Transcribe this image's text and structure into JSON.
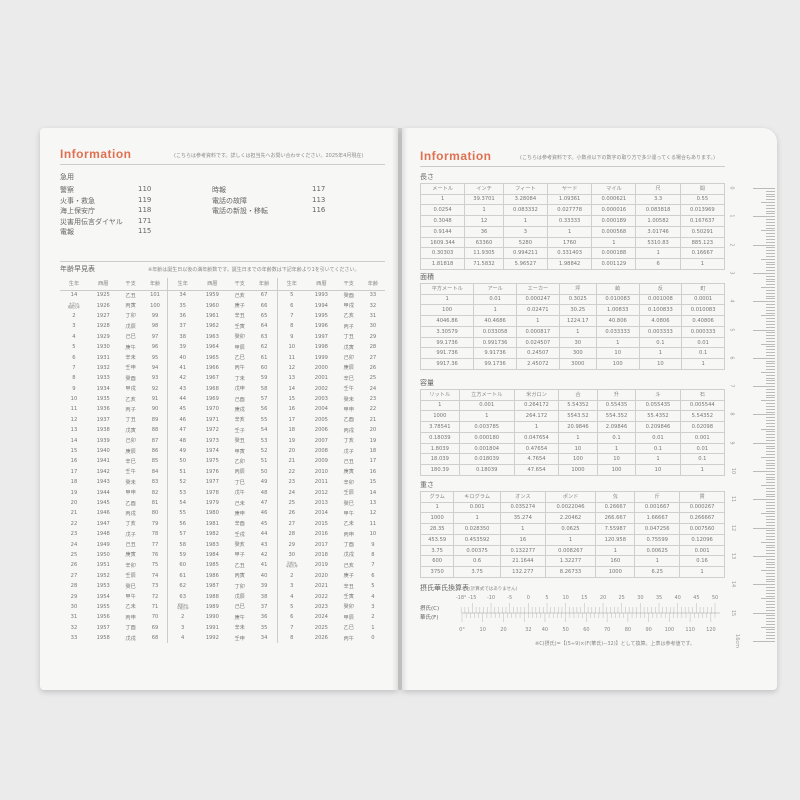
{
  "left": {
    "title": "Information",
    "note": "(こちらは参考資料です。詳しくは担当先へお問い合わせください。2025年4月現在)",
    "emergency": {
      "heading": "急用",
      "col1": [
        {
          "label": "警察",
          "num": "110"
        },
        {
          "label": "火事・救急",
          "num": "119"
        },
        {
          "label": "海上保安庁",
          "num": "118"
        },
        {
          "label": "災害用伝言ダイヤル",
          "num": "171"
        },
        {
          "label": "電報",
          "num": "115"
        }
      ],
      "col2": [
        {
          "label": "時報",
          "num": "117"
        },
        {
          "label": "電話の故障",
          "num": "113"
        },
        {
          "label": "電話の新設・移転",
          "num": "116"
        }
      ]
    },
    "age_table": {
      "heading": "年齢早見表",
      "note": "※年齢は誕生日以後の満年齢数です。誕生日までの年齢数は下記年齢より1を引いてください。",
      "headers": [
        "生年",
        "西暦",
        "干支",
        "年齢"
      ],
      "columns": [
        [
          [
            "14",
            "1925",
            "乙丑",
            "101"
          ],
          [
            "大正15 昭和元年",
            "1926",
            "丙寅",
            "100"
          ],
          [
            "2",
            "1927",
            "丁卯",
            "99"
          ],
          [
            "3",
            "1928",
            "戊辰",
            "98"
          ],
          [
            "4",
            "1929",
            "己巳",
            "97"
          ],
          [
            "5",
            "1930",
            "庚午",
            "96"
          ],
          [
            "6",
            "1931",
            "辛未",
            "95"
          ],
          [
            "7",
            "1932",
            "壬申",
            "94"
          ],
          [
            "8",
            "1933",
            "癸酉",
            "93"
          ],
          [
            "9",
            "1934",
            "甲戌",
            "92"
          ],
          [
            "10",
            "1935",
            "乙亥",
            "91"
          ],
          [
            "11",
            "1936",
            "丙子",
            "90"
          ],
          [
            "12",
            "1937",
            "丁丑",
            "89"
          ],
          [
            "13",
            "1938",
            "戊寅",
            "88"
          ],
          [
            "14",
            "1939",
            "己卯",
            "87"
          ],
          [
            "15",
            "1940",
            "庚辰",
            "86"
          ],
          [
            "16",
            "1941",
            "辛巳",
            "85"
          ],
          [
            "17",
            "1942",
            "壬午",
            "84"
          ],
          [
            "18",
            "1943",
            "癸未",
            "83"
          ],
          [
            "19",
            "1944",
            "甲申",
            "82"
          ],
          [
            "20",
            "1945",
            "乙酉",
            "81"
          ],
          [
            "21",
            "1946",
            "丙戌",
            "80"
          ],
          [
            "22",
            "1947",
            "丁亥",
            "79"
          ],
          [
            "23",
            "1948",
            "戊子",
            "78"
          ],
          [
            "24",
            "1949",
            "己丑",
            "77"
          ],
          [
            "25",
            "1950",
            "庚寅",
            "76"
          ],
          [
            "26",
            "1951",
            "辛卯",
            "75"
          ],
          [
            "27",
            "1952",
            "壬辰",
            "74"
          ],
          [
            "28",
            "1953",
            "癸巳",
            "73"
          ],
          [
            "29",
            "1954",
            "甲午",
            "72"
          ],
          [
            "30",
            "1955",
            "乙未",
            "71"
          ],
          [
            "31",
            "1956",
            "丙申",
            "70"
          ],
          [
            "32",
            "1957",
            "丁酉",
            "69"
          ],
          [
            "33",
            "1958",
            "戊戌",
            "68"
          ]
        ],
        [
          [
            "34",
            "1959",
            "己亥",
            "67"
          ],
          [
            "35",
            "1960",
            "庚子",
            "66"
          ],
          [
            "36",
            "1961",
            "辛丑",
            "65"
          ],
          [
            "37",
            "1962",
            "壬寅",
            "64"
          ],
          [
            "38",
            "1963",
            "癸卯",
            "63"
          ],
          [
            "39",
            "1964",
            "甲辰",
            "62"
          ],
          [
            "40",
            "1965",
            "乙巳",
            "61"
          ],
          [
            "41",
            "1966",
            "丙午",
            "60"
          ],
          [
            "42",
            "1967",
            "丁未",
            "59"
          ],
          [
            "43",
            "1968",
            "戊申",
            "58"
          ],
          [
            "44",
            "1969",
            "己酉",
            "57"
          ],
          [
            "45",
            "1970",
            "庚戌",
            "56"
          ],
          [
            "46",
            "1971",
            "辛亥",
            "55"
          ],
          [
            "47",
            "1972",
            "壬子",
            "54"
          ],
          [
            "48",
            "1973",
            "癸丑",
            "53"
          ],
          [
            "49",
            "1974",
            "甲寅",
            "52"
          ],
          [
            "50",
            "1975",
            "乙卯",
            "51"
          ],
          [
            "51",
            "1976",
            "丙辰",
            "50"
          ],
          [
            "52",
            "1977",
            "丁巳",
            "49"
          ],
          [
            "53",
            "1978",
            "戊午",
            "48"
          ],
          [
            "54",
            "1979",
            "己未",
            "47"
          ],
          [
            "55",
            "1980",
            "庚申",
            "46"
          ],
          [
            "56",
            "1981",
            "辛酉",
            "45"
          ],
          [
            "57",
            "1982",
            "壬戌",
            "44"
          ],
          [
            "58",
            "1983",
            "癸亥",
            "43"
          ],
          [
            "59",
            "1984",
            "甲子",
            "42"
          ],
          [
            "60",
            "1985",
            "乙丑",
            "41"
          ],
          [
            "61",
            "1986",
            "丙寅",
            "40"
          ],
          [
            "62",
            "1987",
            "丁卯",
            "39"
          ],
          [
            "63",
            "1988",
            "戊辰",
            "38"
          ],
          [
            "昭和64 平成元年",
            "1989",
            "己巳",
            "37"
          ],
          [
            "2",
            "1990",
            "庚午",
            "36"
          ],
          [
            "3",
            "1991",
            "辛未",
            "35"
          ],
          [
            "4",
            "1992",
            "壬申",
            "34"
          ]
        ],
        [
          [
            "5",
            "1993",
            "癸酉",
            "33"
          ],
          [
            "6",
            "1994",
            "甲戌",
            "32"
          ],
          [
            "7",
            "1995",
            "乙亥",
            "31"
          ],
          [
            "8",
            "1996",
            "丙子",
            "30"
          ],
          [
            "9",
            "1997",
            "丁丑",
            "29"
          ],
          [
            "10",
            "1998",
            "戊寅",
            "28"
          ],
          [
            "11",
            "1999",
            "己卯",
            "27"
          ],
          [
            "12",
            "2000",
            "庚辰",
            "26"
          ],
          [
            "13",
            "2001",
            "辛巳",
            "25"
          ],
          [
            "14",
            "2002",
            "壬午",
            "24"
          ],
          [
            "15",
            "2003",
            "癸未",
            "23"
          ],
          [
            "16",
            "2004",
            "甲申",
            "22"
          ],
          [
            "17",
            "2005",
            "乙酉",
            "21"
          ],
          [
            "18",
            "2006",
            "丙戌",
            "20"
          ],
          [
            "19",
            "2007",
            "丁亥",
            "19"
          ],
          [
            "20",
            "2008",
            "戊子",
            "18"
          ],
          [
            "21",
            "2009",
            "己丑",
            "17"
          ],
          [
            "22",
            "2010",
            "庚寅",
            "16"
          ],
          [
            "23",
            "2011",
            "辛卯",
            "15"
          ],
          [
            "24",
            "2012",
            "壬辰",
            "14"
          ],
          [
            "25",
            "2013",
            "癸巳",
            "13"
          ],
          [
            "26",
            "2014",
            "甲午",
            "12"
          ],
          [
            "27",
            "2015",
            "乙未",
            "11"
          ],
          [
            "28",
            "2016",
            "丙申",
            "10"
          ],
          [
            "29",
            "2017",
            "丁酉",
            "9"
          ],
          [
            "30",
            "2018",
            "戊戌",
            "8"
          ],
          [
            "平成31 令和元年",
            "2019",
            "己亥",
            "7"
          ],
          [
            "2",
            "2020",
            "庚子",
            "6"
          ],
          [
            "3",
            "2021",
            "辛丑",
            "5"
          ],
          [
            "4",
            "2022",
            "壬寅",
            "4"
          ],
          [
            "5",
            "2023",
            "癸卯",
            "3"
          ],
          [
            "6",
            "2024",
            "甲辰",
            "2"
          ],
          [
            "7",
            "2025",
            "乙巳",
            "1"
          ],
          [
            "8",
            "2026",
            "丙午",
            "0"
          ]
        ]
      ]
    }
  },
  "right": {
    "title": "Information",
    "note": "(こちらは参考資料です。小数点以下の数字の取り方で多少違ってくる場合もあります。)",
    "tables": [
      {
        "heading": "長さ",
        "headers": [
          "メートル",
          "インチ",
          "フィート",
          "ヤード",
          "マイル",
          "尺",
          "間"
        ],
        "rows": [
          [
            "1",
            "39.3701",
            "3.28084",
            "1.09361",
            "0.000621",
            "3.3",
            "0.55"
          ],
          [
            "0.0254",
            "1",
            "0.083332",
            "0.027778",
            "0.000016",
            "0.083818",
            "0.013969"
          ],
          [
            "0.3048",
            "12",
            "1",
            "0.33333",
            "0.000189",
            "1.00582",
            "0.167637"
          ],
          [
            "0.9144",
            "36",
            "3",
            "1",
            "0.000568",
            "3.01746",
            "0.50291"
          ],
          [
            "1609.344",
            "63360",
            "5280",
            "1760",
            "1",
            "5310.83",
            "885.123"
          ],
          [
            "0.30303",
            "11.9305",
            "0.994211",
            "0.331403",
            "0.000188",
            "1",
            "0.16667"
          ],
          [
            "1.81818",
            "71.5832",
            "5.96527",
            "1.98842",
            "0.001129",
            "6",
            "1"
          ]
        ]
      },
      {
        "heading": "面積",
        "headers": [
          "平方メートル",
          "アール",
          "エーカー",
          "坪",
          "畝",
          "反",
          "町"
        ],
        "rows": [
          [
            "1",
            "0.01",
            "0.000247",
            "0.3025",
            "0.010083",
            "0.001008",
            "0.0001"
          ],
          [
            "100",
            "1",
            "0.02471",
            "30.25",
            "1.00833",
            "0.100833",
            "0.010083"
          ],
          [
            "4046.86",
            "40.4686",
            "1",
            "1224.17",
            "40.806",
            "4.0806",
            "0.40806"
          ],
          [
            "3.30579",
            "0.033058",
            "0.000817",
            "1",
            "0.033333",
            "0.003333",
            "0.000333"
          ],
          [
            "99.1736",
            "0.991736",
            "0.024507",
            "30",
            "1",
            "0.1",
            "0.01"
          ],
          [
            "991.736",
            "9.91736",
            "0.24507",
            "300",
            "10",
            "1",
            "0.1"
          ],
          [
            "9917.36",
            "99.1736",
            "2.45072",
            "3000",
            "100",
            "10",
            "1"
          ]
        ]
      },
      {
        "heading": "容量",
        "headers": [
          "リットル",
          "立方メートル",
          "米ガロン",
          "合",
          "升",
          "斗",
          "石"
        ],
        "rows": [
          [
            "1",
            "0.001",
            "0.264172",
            "5.54352",
            "0.55435",
            "0.055435",
            "0.005544"
          ],
          [
            "1000",
            "1",
            "264.172",
            "5543.52",
            "554.352",
            "55.4352",
            "5.54352"
          ],
          [
            "3.78541",
            "0.003785",
            "1",
            "20.9846",
            "2.09846",
            "0.209846",
            "0.02098"
          ],
          [
            "0.18039",
            "0.000180",
            "0.047654",
            "1",
            "0.1",
            "0.01",
            "0.001"
          ],
          [
            "1.8039",
            "0.001804",
            "0.47654",
            "10",
            "1",
            "0.1",
            "0.01"
          ],
          [
            "18.039",
            "0.018039",
            "4.7654",
            "100",
            "10",
            "1",
            "0.1"
          ],
          [
            "180.39",
            "0.18039",
            "47.654",
            "1000",
            "100",
            "10",
            "1"
          ]
        ]
      },
      {
        "heading": "重さ",
        "headers": [
          "グラム",
          "キログラム",
          "オンス",
          "ポンド",
          "匁",
          "斤",
          "貫"
        ],
        "rows": [
          [
            "1",
            "0.001",
            "0.035274",
            "0.0022046",
            "0.26667",
            "0.001667",
            "0.000267"
          ],
          [
            "1000",
            "1",
            "35.274",
            "2.20462",
            "266.667",
            "1.66667",
            "0.266667"
          ],
          [
            "28.35",
            "0.028350",
            "1",
            "0.0625",
            "7.55987",
            "0.047256",
            "0.007560"
          ],
          [
            "453.59",
            "0.453592",
            "16",
            "1",
            "120.958",
            "0.75599",
            "0.12096"
          ],
          [
            "3.75",
            "0.00375",
            "0.132277",
            "0.008267",
            "1",
            "0.00625",
            "0.001"
          ],
          [
            "600",
            "0.6",
            "21.1644",
            "1.32277",
            "160",
            "1",
            "0.16"
          ],
          [
            "3750",
            "3.75",
            "132.277",
            "8.26733",
            "1000",
            "6.25",
            "1"
          ]
        ]
      }
    ],
    "temperature": {
      "heading": "摂氏華氏換算表",
      "subheading": "(計算式ではありません)",
      "celsius_label": "摂氏(C)",
      "fahrenheit_label": "華氏(F)",
      "celsius_ticks": [
        "-18°",
        "-15",
        "-10",
        "-5",
        "0",
        "5",
        "10",
        "15",
        "20",
        "25",
        "30",
        "35",
        "40",
        "45",
        "50"
      ],
      "fahrenheit_ticks": [
        "0°",
        "10",
        "20",
        "32",
        "40",
        "50",
        "60",
        "70",
        "80",
        "90",
        "100",
        "110",
        "120"
      ],
      "footnote": "※C(摂氏)=【(5÷9)×(F(華氏)−32)】として換算。上表は参考値です。"
    },
    "ruler": {
      "labels": [
        "0",
        "1",
        "2",
        "3",
        "4",
        "5",
        "6",
        "7",
        "8",
        "9",
        "10",
        "11",
        "12",
        "13",
        "14",
        "15",
        "16cm"
      ]
    }
  },
  "colors": {
    "accent": "#e07050"
  }
}
